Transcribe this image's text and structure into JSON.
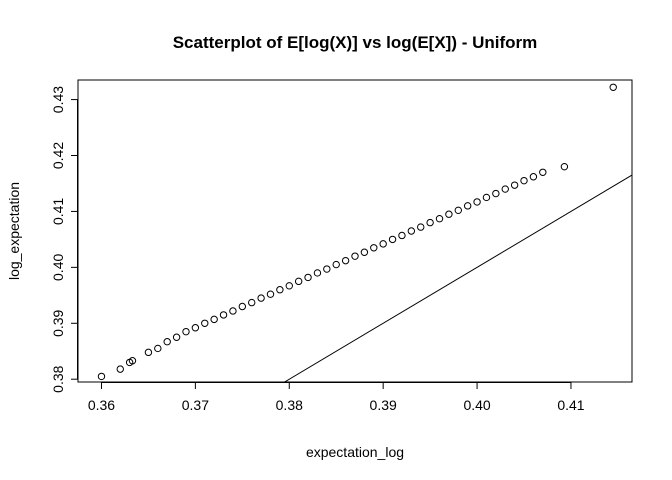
{
  "chart_data": {
    "type": "scatter",
    "title": "Scatterplot of E[log(X)] vs log(E[X]) - Uniform",
    "xlabel": "expectation_log",
    "ylabel": "log_expectation",
    "xlim": [
      0.3575,
      0.4165
    ],
    "ylim": [
      0.3795,
      0.4335
    ],
    "xticks": [
      "0.36",
      "0.37",
      "0.38",
      "0.39",
      "0.40",
      "0.41"
    ],
    "xtick_values": [
      0.36,
      0.37,
      0.38,
      0.39,
      0.4,
      0.41
    ],
    "yticks": [
      "0.38",
      "0.39",
      "0.40",
      "0.41",
      "0.42",
      "0.43"
    ],
    "ytick_values": [
      0.38,
      0.39,
      0.4,
      0.41,
      0.42,
      0.43
    ],
    "grid": false,
    "marker": "open-circle",
    "reference_line": {
      "label": "y = x",
      "slope": 1,
      "intercept": 0
    },
    "series": [
      {
        "x": [
          0.36,
          0.362,
          0.363,
          0.3633,
          0.365,
          0.366,
          0.367,
          0.368,
          0.369,
          0.37,
          0.371,
          0.372,
          0.373,
          0.374,
          0.375,
          0.376,
          0.377,
          0.378,
          0.379,
          0.38,
          0.381,
          0.382,
          0.383,
          0.384,
          0.385,
          0.386,
          0.387,
          0.388,
          0.389,
          0.39,
          0.391,
          0.392,
          0.393,
          0.394,
          0.395,
          0.396,
          0.397,
          0.398,
          0.399,
          0.4,
          0.401,
          0.402,
          0.403,
          0.404,
          0.405,
          0.406,
          0.407,
          0.4093,
          0.4145
        ],
        "y": [
          0.3805,
          0.3818,
          0.383,
          0.3833,
          0.3848,
          0.3855,
          0.3867,
          0.3875,
          0.3885,
          0.3892,
          0.39,
          0.3907,
          0.3915,
          0.3922,
          0.393,
          0.3937,
          0.3945,
          0.3952,
          0.396,
          0.3967,
          0.3975,
          0.3982,
          0.399,
          0.3997,
          0.4005,
          0.4012,
          0.402,
          0.4027,
          0.4035,
          0.4042,
          0.405,
          0.4057,
          0.4065,
          0.4072,
          0.408,
          0.4087,
          0.4095,
          0.4102,
          0.411,
          0.4117,
          0.4125,
          0.4132,
          0.414,
          0.4147,
          0.4155,
          0.4162,
          0.417,
          0.418,
          0.4322
        ]
      }
    ]
  }
}
